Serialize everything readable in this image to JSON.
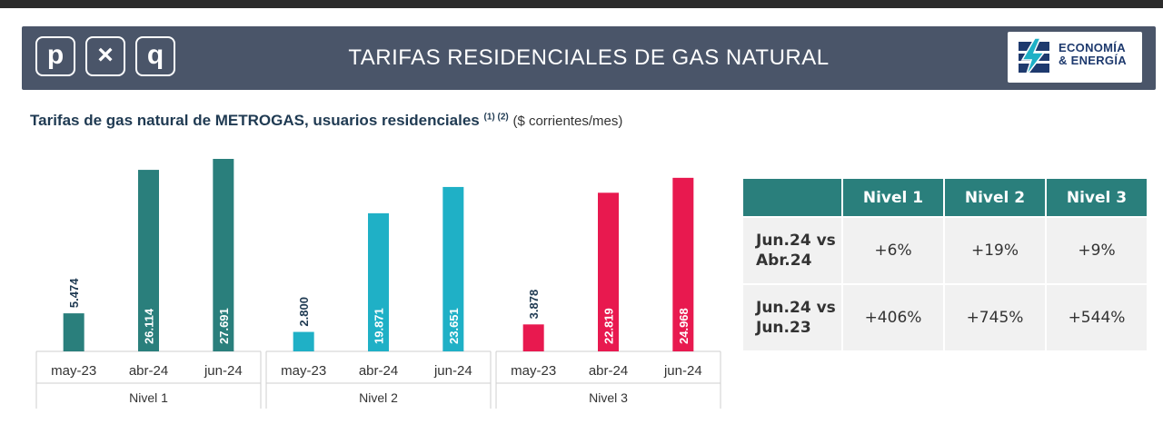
{
  "header": {
    "logo_letters": [
      "p",
      "×",
      "q"
    ],
    "title": "TARIFAS RESIDENCIALES DE GAS NATURAL",
    "brand_line1": "ECONOMÍA",
    "brand_line2": "& ENERGÍA"
  },
  "subtitle": {
    "main": "Tarifas de gas natural de METROGAS, usuarios residenciales",
    "notes": "(1) (2)",
    "unit": "($ corrientes/mes)"
  },
  "chart_data": {
    "type": "bar",
    "title": "Tarifas de gas natural de METROGAS, usuarios residenciales",
    "groups": [
      {
        "name": "Nivel 1",
        "color": "#2a7f7c",
        "categories": [
          "may-23",
          "abr-24",
          "jun-24"
        ],
        "values": [
          5474,
          26114,
          27691
        ],
        "labels": [
          "5.474",
          "26.114",
          "27.691"
        ]
      },
      {
        "name": "Nivel 2",
        "color": "#1fb0c6",
        "categories": [
          "may-23",
          "abr-24",
          "jun-24"
        ],
        "values": [
          2800,
          19871,
          23651
        ],
        "labels": [
          "2.800",
          "19.871",
          "23.651"
        ]
      },
      {
        "name": "Nivel 3",
        "color": "#e8194f",
        "categories": [
          "may-23",
          "abr-24",
          "jun-24"
        ],
        "values": [
          3878,
          22819,
          24968
        ],
        "labels": [
          "3.878",
          "22.819",
          "24.968"
        ]
      }
    ]
  },
  "table": {
    "headers": [
      "",
      "Nivel 1",
      "Nivel 2",
      "Nivel 3"
    ],
    "rows": [
      {
        "label_line1": "Jun.24 vs",
        "label_line2": "Abr.24",
        "values": [
          "+6%",
          "+19%",
          "+9%"
        ]
      },
      {
        "label_line1": "Jun.24 vs",
        "label_line2": "Jun.23",
        "values": [
          "+406%",
          "+745%",
          "+544%"
        ]
      }
    ]
  }
}
